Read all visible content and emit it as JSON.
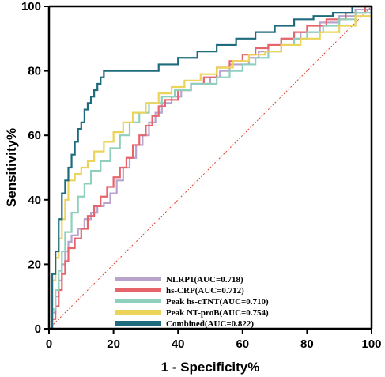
{
  "chart_data": {
    "type": "line",
    "title": "",
    "xlabel": "1 - Specificity%",
    "ylabel": "Sensitivity%",
    "xlim": [
      0,
      100
    ],
    "ylim": [
      0,
      100
    ],
    "x_ticks": [
      0,
      20,
      40,
      60,
      80,
      100
    ],
    "y_ticks": [
      0,
      20,
      40,
      60,
      80,
      100
    ],
    "grid": false,
    "legend_position": "bottom-center",
    "reference_line": {
      "x": [
        0,
        100
      ],
      "y": [
        0,
        100
      ],
      "color": "#d9452f",
      "style": "dotted"
    },
    "series": [
      {
        "name": "NLRP1(AUC=0.718)",
        "color": "#b7a3cc",
        "x": [
          0,
          1,
          1,
          2,
          2,
          3,
          3,
          4,
          4,
          5,
          5,
          6,
          6,
          7,
          7,
          9,
          9,
          11,
          11,
          13,
          13,
          15,
          15,
          17,
          17,
          19,
          19,
          21,
          21,
          23,
          23,
          25,
          25,
          27,
          27,
          29,
          29,
          31,
          31,
          33,
          33,
          35,
          35,
          38,
          38,
          41,
          41,
          44,
          44,
          47,
          47,
          50,
          50,
          53,
          53,
          56,
          56,
          60,
          60,
          62,
          62,
          65,
          65,
          68,
          68,
          72,
          72,
          78,
          78,
          84,
          84,
          90,
          90,
          95,
          95,
          100,
          100
        ],
        "y": [
          0,
          0,
          5,
          5,
          10,
          10,
          15,
          15,
          20,
          20,
          24,
          24,
          27,
          27,
          29,
          29,
          31,
          31,
          34,
          34,
          36,
          36,
          38,
          38,
          39,
          39,
          42,
          42,
          46,
          46,
          50,
          50,
          53,
          53,
          57,
          57,
          60,
          60,
          64,
          64,
          67,
          67,
          70,
          70,
          72,
          72,
          74,
          74,
          76,
          76,
          76,
          76,
          78,
          78,
          80,
          80,
          82,
          82,
          82,
          82,
          84,
          84,
          86,
          86,
          88,
          88,
          90,
          90,
          92,
          92,
          95,
          95,
          97,
          97,
          99,
          99,
          100
        ]
      },
      {
        "name": "hs-CRP(AUC=0.712)",
        "color": "#e8646b",
        "x": [
          0,
          1,
          1,
          2,
          2,
          3,
          3,
          4,
          4,
          5,
          5,
          6,
          6,
          8,
          8,
          10,
          10,
          12,
          12,
          14,
          14,
          16,
          16,
          18,
          18,
          20,
          20,
          22,
          22,
          24,
          24,
          26,
          26,
          28,
          28,
          30,
          30,
          32,
          32,
          34,
          34,
          36,
          36,
          40,
          40,
          44,
          44,
          48,
          48,
          52,
          52,
          56,
          56,
          60,
          60,
          64,
          64,
          68,
          68,
          72,
          72,
          76,
          76,
          80,
          80,
          86,
          86,
          92,
          92,
          98,
          98,
          100
        ],
        "y": [
          0,
          0,
          3,
          3,
          7,
          7,
          12,
          12,
          17,
          17,
          21,
          21,
          25,
          25,
          28,
          28,
          31,
          31,
          35,
          35,
          38,
          38,
          41,
          41,
          44,
          44,
          47,
          47,
          50,
          50,
          53,
          53,
          57,
          57,
          60,
          60,
          63,
          63,
          66,
          66,
          69,
          69,
          71,
          71,
          74,
          74,
          76,
          76,
          78,
          78,
          81,
          81,
          83,
          83,
          85,
          85,
          87,
          87,
          88,
          88,
          90,
          90,
          92,
          92,
          94,
          94,
          96,
          96,
          98,
          98,
          100,
          100
        ]
      },
      {
        "name": "Peak hs-cTNT(AUC=0.710)",
        "color": "#8fcfbd",
        "x": [
          0,
          1,
          1,
          2,
          2,
          3,
          3,
          4,
          4,
          5,
          5,
          7,
          7,
          9,
          9,
          11,
          11,
          13,
          13,
          16,
          16,
          19,
          19,
          22,
          22,
          25,
          25,
          28,
          28,
          31,
          31,
          35,
          35,
          39,
          39,
          44,
          44,
          48,
          48,
          52,
          52,
          56,
          56,
          60,
          60,
          64,
          64,
          68,
          68,
          72,
          72,
          76,
          76,
          80,
          80,
          85,
          85,
          90,
          90,
          95,
          95,
          100
        ],
        "y": [
          0,
          0,
          6,
          6,
          12,
          12,
          18,
          18,
          24,
          24,
          30,
          30,
          36,
          36,
          41,
          41,
          45,
          45,
          49,
          49,
          52,
          52,
          56,
          56,
          60,
          60,
          64,
          64,
          67,
          67,
          70,
          70,
          72,
          72,
          74,
          74,
          76,
          76,
          76,
          76,
          78,
          78,
          80,
          80,
          82,
          82,
          84,
          84,
          86,
          86,
          88,
          88,
          90,
          90,
          92,
          92,
          94,
          94,
          96,
          96,
          98,
          98
        ]
      },
      {
        "name": "Peak NT-proB(AUC=0.754)",
        "color": "#ecd35a",
        "x": [
          0,
          1,
          1,
          2,
          2,
          3,
          3,
          4,
          4,
          5,
          5,
          6,
          6,
          8,
          8,
          10,
          10,
          12,
          12,
          14,
          14,
          17,
          17,
          20,
          20,
          23,
          23,
          26,
          26,
          30,
          30,
          34,
          34,
          38,
          38,
          42,
          42,
          47,
          47,
          52,
          52,
          57,
          57,
          62,
          62,
          67,
          67,
          72,
          72,
          78,
          78,
          84,
          84,
          90,
          90,
          95,
          95,
          100
        ],
        "y": [
          0,
          0,
          15,
          15,
          22,
          22,
          28,
          28,
          34,
          34,
          40,
          40,
          46,
          46,
          48,
          48,
          50,
          50,
          52,
          52,
          55,
          55,
          58,
          58,
          61,
          61,
          64,
          64,
          67,
          67,
          70,
          70,
          73,
          73,
          75,
          75,
          77,
          77,
          79,
          79,
          81,
          81,
          83,
          83,
          85,
          85,
          86,
          86,
          88,
          88,
          90,
          90,
          92,
          92,
          94,
          94,
          97,
          97
        ]
      },
      {
        "name": "Combined(AUC=0.822)",
        "color": "#1d6b7c",
        "x": [
          0,
          1,
          1,
          2,
          2,
          3,
          3,
          4,
          4,
          5,
          5,
          6,
          6,
          7,
          7,
          8,
          8,
          9,
          9,
          10,
          10,
          11,
          11,
          12,
          12,
          13,
          13,
          14,
          14,
          15,
          15,
          16,
          16,
          17,
          17,
          18,
          18,
          19,
          19,
          21,
          21,
          24,
          24,
          28,
          28,
          34,
          34,
          40,
          40,
          46,
          46,
          52,
          52,
          58,
          58,
          64,
          64,
          70,
          70,
          76,
          76,
          82,
          82,
          88,
          88,
          94,
          94,
          100
        ],
        "y": [
          0,
          0,
          17,
          17,
          24,
          24,
          34,
          34,
          42,
          42,
          46,
          46,
          50,
          50,
          54,
          54,
          58,
          58,
          62,
          62,
          64,
          64,
          68,
          68,
          70,
          70,
          72,
          72,
          74,
          74,
          76,
          76,
          78,
          78,
          80,
          80,
          80,
          80,
          80,
          80,
          80,
          80,
          80,
          80,
          80,
          80,
          82,
          82,
          84,
          84,
          86,
          86,
          88,
          88,
          90,
          90,
          92,
          92,
          94,
          94,
          96,
          96,
          97,
          97,
          98,
          98,
          100,
          100
        ]
      }
    ]
  }
}
